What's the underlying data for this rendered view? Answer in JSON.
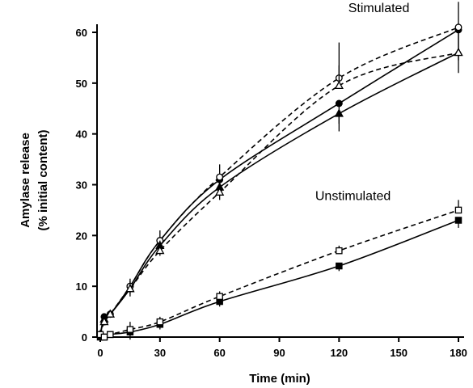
{
  "chart_data": {
    "type": "line",
    "xlabel": "Time (min)",
    "ylabel_line1": "Amylase release",
    "ylabel_line2": "(% initial content)",
    "xlim": [
      0,
      180
    ],
    "ylim": [
      0,
      60
    ],
    "xticks": [
      0,
      30,
      60,
      90,
      120,
      150,
      180
    ],
    "yticks": [
      0,
      10,
      20,
      30,
      40,
      50,
      60
    ],
    "grid": false,
    "annotations": [
      {
        "text": "Stimulated",
        "x": 140,
        "y": 64
      },
      {
        "text": "Unstimulated",
        "x": 127,
        "y": 27
      }
    ],
    "series": [
      {
        "marker": "filled-circle",
        "line": "solid",
        "color": "#000000",
        "x": [
          0,
          2,
          5,
          15,
          30,
          60,
          120,
          180
        ],
        "y": [
          0.5,
          4,
          4.5,
          10,
          19,
          31,
          46,
          60.5
        ],
        "error": [
          0,
          0,
          0,
          1.5,
          2,
          2.5,
          4,
          6
        ]
      },
      {
        "marker": "open-circle",
        "line": "dashed",
        "color": "#000000",
        "x": [
          0,
          2,
          5,
          15,
          30,
          60,
          120,
          180
        ],
        "y": [
          0.5,
          3,
          4.5,
          10,
          19,
          31.5,
          51,
          61
        ],
        "error": [
          0,
          0,
          0,
          1.5,
          2,
          2.5,
          7,
          5
        ]
      },
      {
        "marker": "filled-triangle",
        "line": "solid",
        "color": "#000000",
        "x": [
          0,
          2,
          5,
          15,
          30,
          60,
          120,
          180
        ],
        "y": [
          0.5,
          3.5,
          4.5,
          9.5,
          18,
          29.5,
          44,
          56
        ],
        "error": [
          0,
          0,
          0,
          1.5,
          2,
          2.5,
          3.5,
          4
        ]
      },
      {
        "marker": "open-triangle",
        "line": "dashed",
        "color": "#000000",
        "x": [
          0,
          2,
          5,
          15,
          30,
          60,
          120,
          180
        ],
        "y": [
          0.5,
          3,
          4.5,
          9.5,
          17,
          28.5,
          49.5,
          56
        ],
        "error": [
          0,
          0,
          0,
          1.5,
          2,
          2.5,
          4,
          4
        ]
      },
      {
        "marker": "filled-square",
        "line": "solid",
        "color": "#000000",
        "x": [
          0,
          2,
          5,
          15,
          30,
          60,
          120,
          180
        ],
        "y": [
          0,
          0,
          0.5,
          1,
          2.5,
          7,
          14,
          23
        ],
        "error": [
          0,
          0.5,
          0.5,
          1.5,
          1,
          1,
          1,
          1.5
        ]
      },
      {
        "marker": "open-square",
        "line": "dashed",
        "color": "#000000",
        "x": [
          0,
          2,
          5,
          15,
          30,
          60,
          120,
          180
        ],
        "y": [
          0.5,
          0,
          0.5,
          1.5,
          3,
          8,
          17,
          25
        ],
        "error": [
          0,
          0.5,
          0.5,
          1.5,
          1,
          1,
          1,
          2
        ]
      }
    ]
  }
}
